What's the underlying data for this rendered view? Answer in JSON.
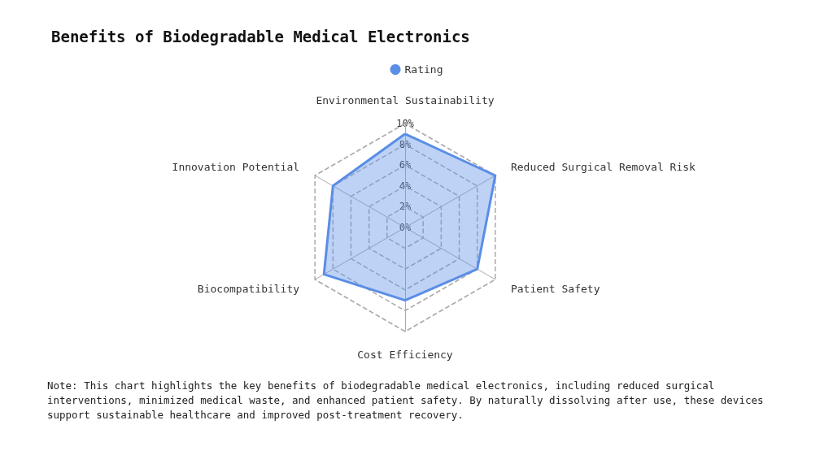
{
  "chart_data": {
    "type": "radar",
    "title": "Benefits of Biodegradable Medical Electronics",
    "categories": [
      "Environmental Sustainability",
      "Reduced Surgical Removal Risk",
      "Patient Safety",
      "Cost Efficiency",
      "Biocompatibility",
      "Innovation Potential"
    ],
    "series": [
      {
        "name": "Rating",
        "color": "#5b8ee6",
        "values": [
          9,
          10,
          8,
          7,
          9,
          8
        ]
      }
    ],
    "ylim": [
      0,
      10
    ],
    "yticks": [
      {
        "value": 0,
        "label": "0%"
      },
      {
        "value": 2,
        "label": "2%"
      },
      {
        "value": 4,
        "label": "4%"
      },
      {
        "value": 6,
        "label": "6%"
      },
      {
        "value": 8,
        "label": "8%"
      },
      {
        "value": 10,
        "label": "10%"
      }
    ],
    "legend": "top",
    "annotations": [
      "Note: This chart highlights the key benefits of biodegradable medical electronics, including reduced surgical interventions, minimized medical waste, and enhanced patient safety. By naturally dissolving after use, these devices support sustainable healthcare and improved post-treatment recovery."
    ]
  }
}
